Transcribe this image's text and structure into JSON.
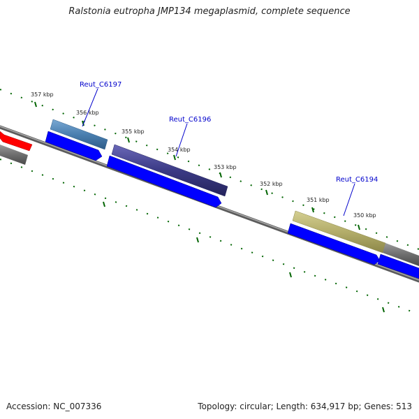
{
  "header": {
    "title": "Ralstonia eutropha JMP134 megaplasmid, complete sequence"
  },
  "footer": {
    "accession": "Accession: NC_007336",
    "summary": "Topology: circular; Length: 634,917 bp; Genes: 513"
  },
  "map": {
    "ticks": [
      "357 kbp",
      "356 kbp",
      "355 kbp",
      "354 kbp",
      "353 kbp",
      "352 kbp",
      "351 kbp",
      "350 kbp"
    ],
    "gene_labels": [
      "Reut_C6197",
      "Reut_C6196",
      "Reut_C6194"
    ]
  },
  "colors": {
    "backbone": "#808080",
    "cds_forward": "#0000ff",
    "cds_reverse": "#ff0000",
    "tick": "#006400",
    "label": "#0000cc",
    "feature_steelblue": "#4a7fb0",
    "feature_darkslate": "#3b3a85",
    "feature_khaki": "#b3ad6a",
    "feature_gray": "#6e6e6e"
  }
}
